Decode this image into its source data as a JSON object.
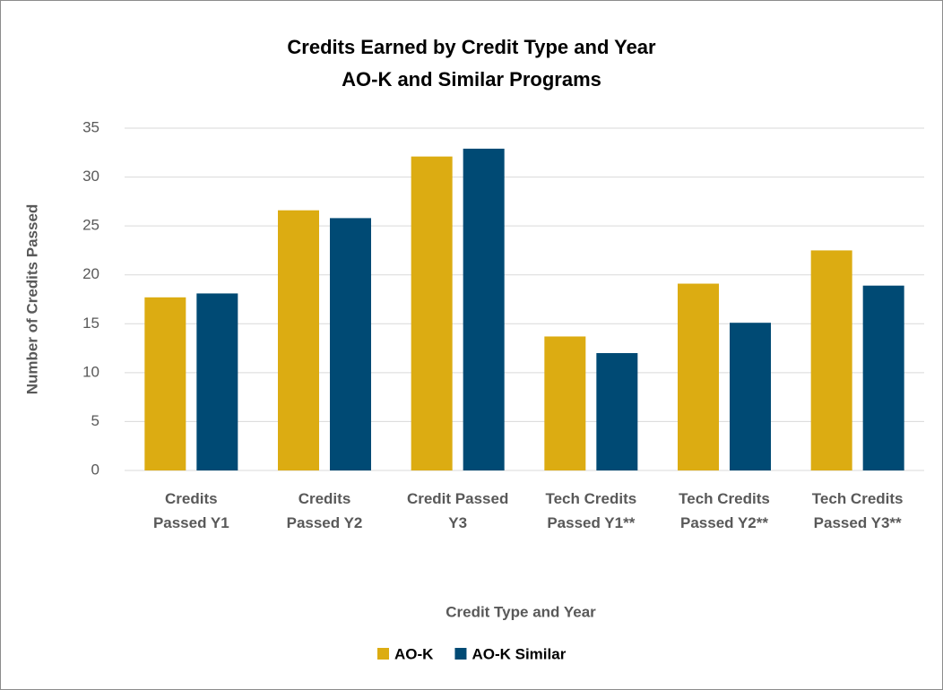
{
  "chart_data": {
    "type": "bar",
    "title": "Credits Earned by Credit Type and Year",
    "subtitle": "AO-K and Similar Programs",
    "x_label": "Credit Type and Year",
    "y_label": "Number of Credits Passed",
    "categories": [
      "Credits Passed Y1",
      "Credits Passed Y2",
      "Credit Passed Y3",
      "Tech Credits Passed Y1**",
      "Tech Credits Passed Y2**",
      "Tech Credits Passed Y3**"
    ],
    "series": [
      {
        "name": "AO-K",
        "color": "#dcac12",
        "values": [
          17.7,
          26.6,
          32.1,
          13.7,
          19.1,
          22.5
        ]
      },
      {
        "name": "AO-K Similar",
        "color": "#004a74",
        "values": [
          18.1,
          25.8,
          32.9,
          12.0,
          15.1,
          18.9
        ]
      }
    ],
    "ylim": [
      0,
      35
    ],
    "yticks": [
      0,
      5,
      10,
      15,
      20,
      25,
      30,
      35
    ],
    "grid": true,
    "legend": "bottom"
  }
}
